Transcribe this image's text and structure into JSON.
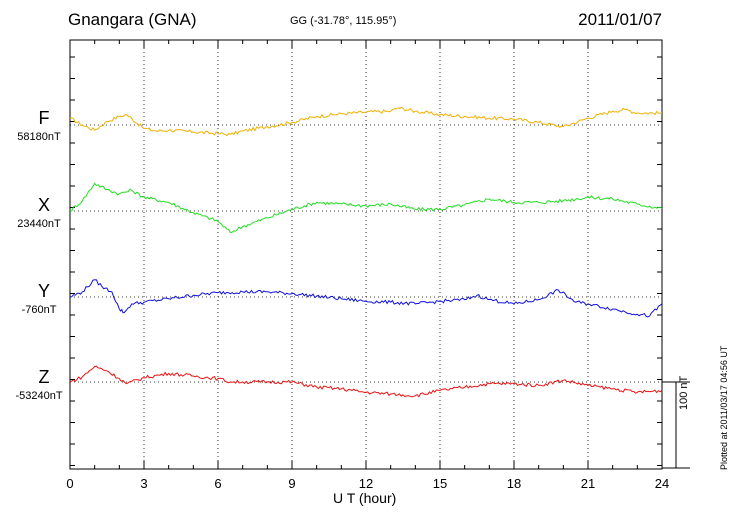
{
  "header": {
    "station": "Gnangara (GNA)",
    "coords": "GG (-31.78°, 115.95°)",
    "date": "2011/01/07"
  },
  "plotted_stamp": "Plotted at 2011/03/17 04:56 UT",
  "scale_label": "100 nT",
  "chart_data": {
    "type": "line",
    "title": "Gnangara (GNA)",
    "xlabel": "U T (hour)",
    "ylabel": "",
    "xlim": [
      0,
      24
    ],
    "x_ticks": [
      "0",
      "3",
      "6",
      "9",
      "12",
      "15",
      "18",
      "21",
      "24"
    ],
    "scale_bar_nT": 100,
    "grid": true,
    "series": [
      {
        "name": "F",
        "baseline_label": "58180nT",
        "color": "#f0b000",
        "x": [
          0,
          0.5,
          1,
          1.5,
          2,
          2.3,
          3,
          3.5,
          4,
          5,
          6,
          6.5,
          7,
          8,
          9,
          10,
          11,
          12,
          13,
          13.3,
          14,
          15,
          16,
          17,
          18,
          19,
          20,
          21,
          22,
          22.5,
          23,
          24
        ],
        "values": [
          8,
          0,
          -6,
          4,
          10,
          12,
          -4,
          -7,
          -6,
          -8,
          -10,
          -11,
          -7,
          -2,
          3,
          10,
          13,
          15,
          16,
          20,
          16,
          12,
          10,
          8,
          7,
          3,
          -2,
          8,
          16,
          18,
          14,
          14
        ]
      },
      {
        "name": "X",
        "baseline_label": "23440nT",
        "color": "#22dd22",
        "x": [
          0,
          0.5,
          1,
          1.5,
          2,
          2.5,
          3,
          4,
          5,
          6,
          6.5,
          7,
          8,
          9,
          10,
          11,
          12,
          13,
          14,
          15,
          16,
          17,
          18,
          19,
          20,
          21,
          22,
          23,
          24
        ],
        "values": [
          0,
          12,
          32,
          25,
          20,
          24,
          16,
          10,
          -2,
          -12,
          -25,
          -18,
          -8,
          2,
          10,
          8,
          6,
          8,
          2,
          2,
          7,
          14,
          10,
          10,
          12,
          16,
          14,
          8,
          3
        ]
      },
      {
        "name": "Y",
        "baseline_label": "-760nT",
        "color": "#1010dd",
        "x": [
          0,
          0.5,
          1,
          1.3,
          1.7,
          2,
          2.2,
          2.5,
          3,
          4,
          5,
          6,
          7,
          8,
          9,
          10,
          11,
          12,
          13,
          14,
          15,
          16,
          16.5,
          17,
          18,
          19,
          19.8,
          20.5,
          21,
          22,
          23,
          23.5,
          24
        ],
        "values": [
          0,
          6,
          20,
          12,
          6,
          -14,
          -18,
          -8,
          -6,
          -2,
          2,
          5,
          6,
          6,
          4,
          1,
          -2,
          -5,
          -6,
          -8,
          -5,
          -3,
          2,
          -3,
          -8,
          -3,
          8,
          -6,
          -8,
          -14,
          -20,
          -22,
          -8
        ]
      },
      {
        "name": "Z",
        "baseline_label": "-53240nT",
        "color": "#ee1111",
        "x": [
          0,
          0.5,
          1,
          1.5,
          2,
          2.3,
          3,
          4,
          5,
          6,
          6.5,
          7,
          8,
          9,
          10,
          11,
          12,
          13,
          14,
          15,
          16,
          17,
          18,
          19,
          20,
          21,
          22,
          23,
          24
        ],
        "values": [
          0,
          6,
          18,
          13,
          4,
          -2,
          5,
          10,
          7,
          4,
          0,
          0,
          0,
          0,
          -6,
          -8,
          -12,
          -14,
          -16,
          -10,
          -6,
          -2,
          -2,
          -4,
          2,
          -4,
          -8,
          -12,
          -10
        ]
      }
    ]
  }
}
